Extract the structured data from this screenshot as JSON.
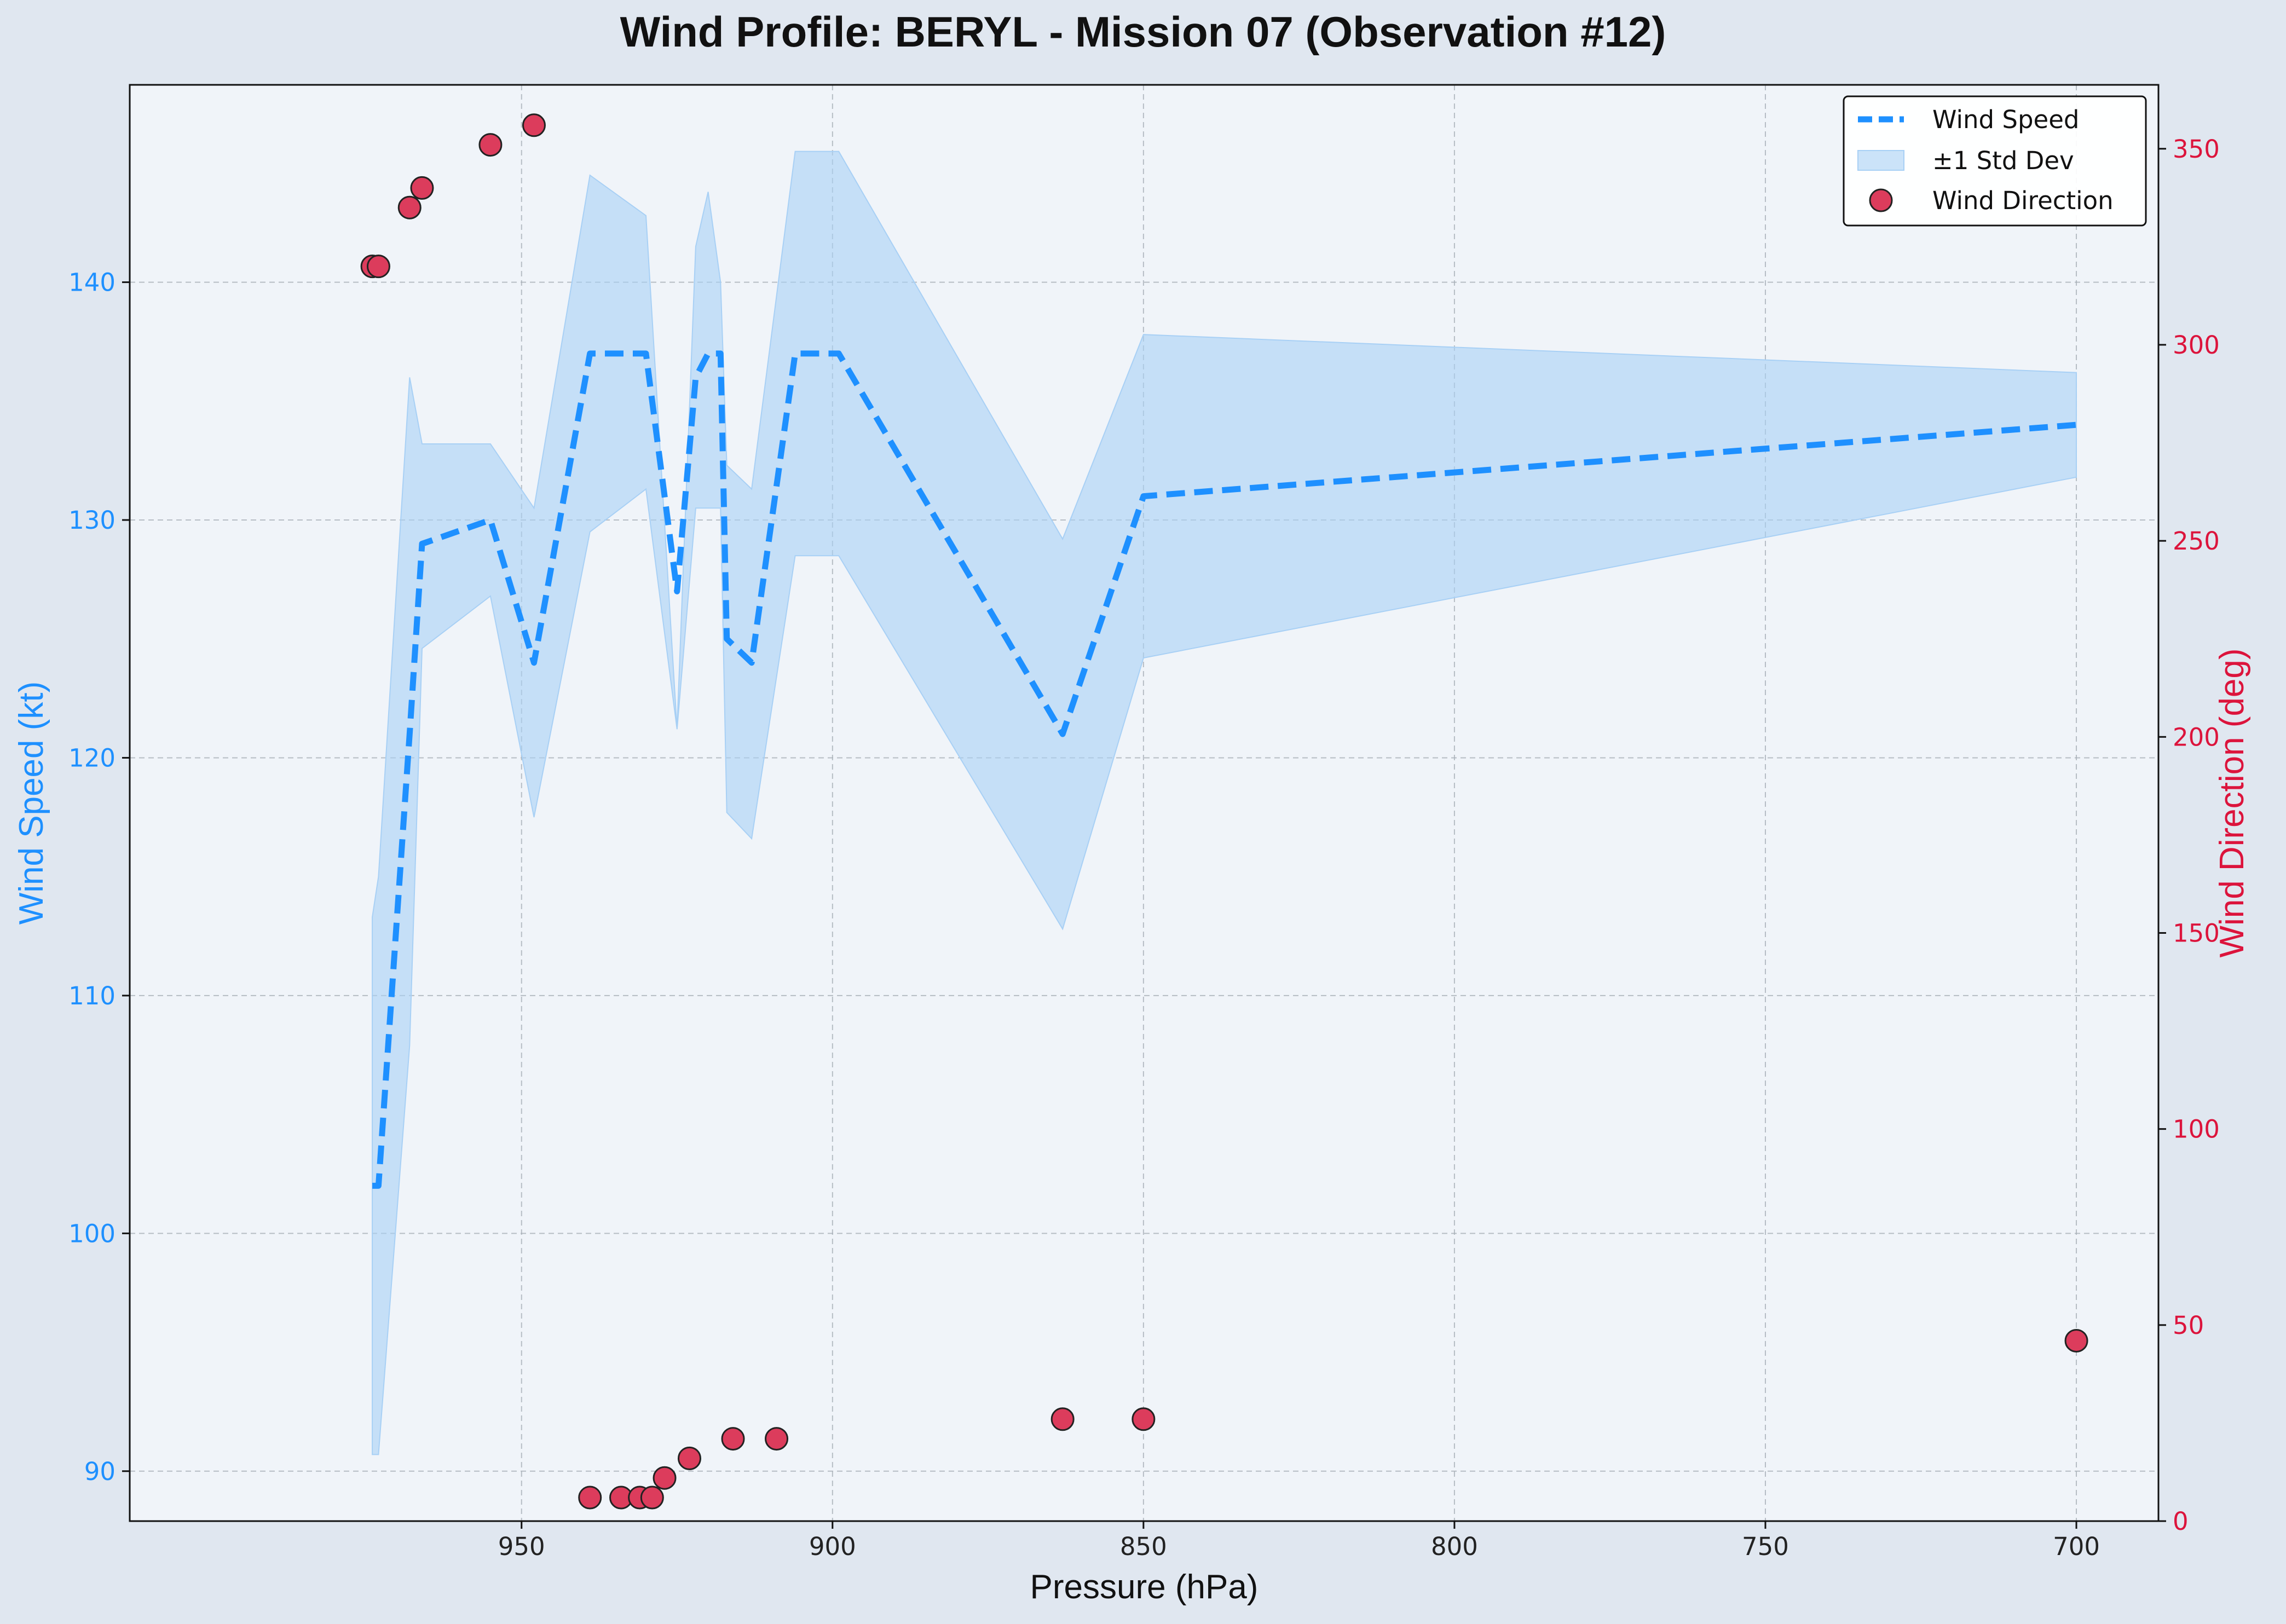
{
  "chart_data": {
    "type": "line",
    "title": "Wind Profile: BERYL - Mission 07 (Observation #12)",
    "xlabel": "Pressure (hPa)",
    "ylabel": "Wind Speed (kt)",
    "y2label": "Wind Direction (deg)",
    "x_inverted": true,
    "xlim": [
      1013,
      686.8
    ],
    "ylim": [
      87.9,
      148.3
    ],
    "y2lim": [
      0,
      366.3
    ],
    "x_ticks": [
      950,
      900,
      850,
      800,
      750,
      700
    ],
    "x_tick_labels": [
      "950",
      "900",
      "850",
      "800",
      "750",
      "700"
    ],
    "y_ticks": [
      90,
      100,
      110,
      120,
      130,
      140
    ],
    "y_tick_labels": [
      "90",
      "100",
      "110",
      "120",
      "130",
      "140"
    ],
    "y2_ticks": [
      0,
      50,
      100,
      150,
      200,
      250,
      300,
      350
    ],
    "y2_tick_labels": [
      "0",
      "50",
      "100",
      "150",
      "200",
      "250",
      "300",
      "350"
    ],
    "grid": true,
    "legend_position": "top-right",
    "legend": [
      "Wind Speed",
      "±1 Std Dev",
      "Wind Direction"
    ],
    "colors": {
      "speed": "#1e90ff",
      "band": "#a8d0f5",
      "direction": "#dc3c5c",
      "direction_edge": "#222222",
      "left_axis": "#1e90ff",
      "right_axis": "#dc143c",
      "plot_bg": "#f0f4f9",
      "grid": "#a8b0b8"
    },
    "series": [
      {
        "name": "Wind Speed",
        "axis": "left",
        "style": "dashed",
        "x": [
          974,
          973,
          968,
          966,
          955,
          948,
          939,
          930,
          925,
          922,
          920,
          918,
          917,
          913,
          906,
          899,
          863,
          850,
          700
        ],
        "values": [
          102,
          102,
          121,
          129,
          130,
          124,
          137,
          137,
          127,
          136,
          137,
          137,
          125,
          124,
          137,
          137,
          121,
          131,
          134
        ],
        "std_upper": [
          113.3,
          115.0,
          136.0,
          133.2,
          133.2,
          130.5,
          144.5,
          142.8,
          121.2,
          141.5,
          143.8,
          140.0,
          132.3,
          131.3,
          145.5,
          145.5,
          129.2,
          137.8,
          136.2
        ],
        "std_lower": [
          90.7,
          90.7,
          107.9,
          124.6,
          126.8,
          117.5,
          129.5,
          131.3,
          121.2,
          130.5,
          130.5,
          130.5,
          117.7,
          116.6,
          128.5,
          128.5,
          112.8,
          124.2,
          131.8
        ]
      },
      {
        "name": "Wind Direction",
        "axis": "right",
        "type": "scatter",
        "x": [
          974,
          973,
          968,
          966,
          955,
          948,
          939,
          934,
          931,
          929,
          927,
          923,
          916,
          909,
          863,
          850,
          700
        ],
        "values": [
          320,
          320,
          335,
          340,
          351,
          356,
          6,
          6,
          6,
          6,
          11,
          16,
          21,
          21,
          26,
          26,
          46
        ]
      }
    ]
  }
}
